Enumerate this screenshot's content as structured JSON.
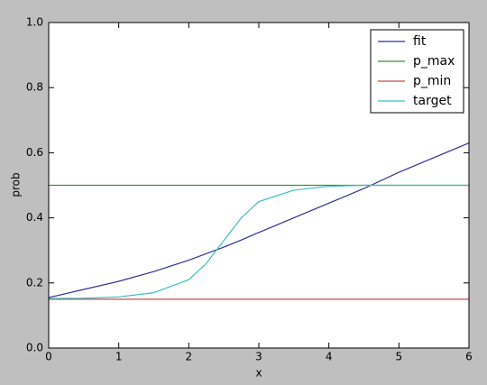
{
  "chart_data": {
    "type": "line",
    "xlabel": "x",
    "ylabel": "prob",
    "xlim": [
      0,
      6
    ],
    "xticks": [
      0,
      1,
      2,
      3,
      4,
      5,
      6
    ],
    "ylim": [
      0,
      1
    ],
    "yticks": [
      {
        "value": 0,
        "label": "0.0"
      },
      0.2,
      0.4,
      0.6,
      0.8,
      {
        "value": 1,
        "label": "1.0"
      }
    ],
    "legend": "upper right",
    "series": [
      {
        "name": "fit",
        "color": "#30309a",
        "x": [
          0,
          0.5,
          1,
          1.5,
          2,
          2.25,
          2.5,
          2.75,
          3,
          3.5,
          4,
          4.5,
          5,
          5.5,
          6
        ],
        "values": [
          0.155,
          0.18,
          0.205,
          0.235,
          0.27,
          0.29,
          0.31,
          0.332,
          0.355,
          0.4,
          0.445,
          0.49,
          0.54,
          0.585,
          0.63
        ]
      },
      {
        "name": "p_max",
        "color": "#3c8f3c",
        "x": [
          0,
          6
        ],
        "values": [
          0.5,
          0.5
        ]
      },
      {
        "name": "p_min",
        "color": "#c44e52",
        "x": [
          0,
          6
        ],
        "values": [
          0.15,
          0.15
        ]
      },
      {
        "name": "target",
        "color": "#3cbfbf",
        "x": [
          0,
          0.5,
          1,
          1.5,
          2,
          2.25,
          2.5,
          2.75,
          3,
          3.5,
          4,
          4.5,
          5,
          5.5,
          6
        ],
        "values": [
          0.152,
          0.153,
          0.157,
          0.17,
          0.21,
          0.26,
          0.33,
          0.4,
          0.45,
          0.485,
          0.497,
          0.5,
          0.5,
          0.5,
          0.5
        ]
      }
    ]
  }
}
